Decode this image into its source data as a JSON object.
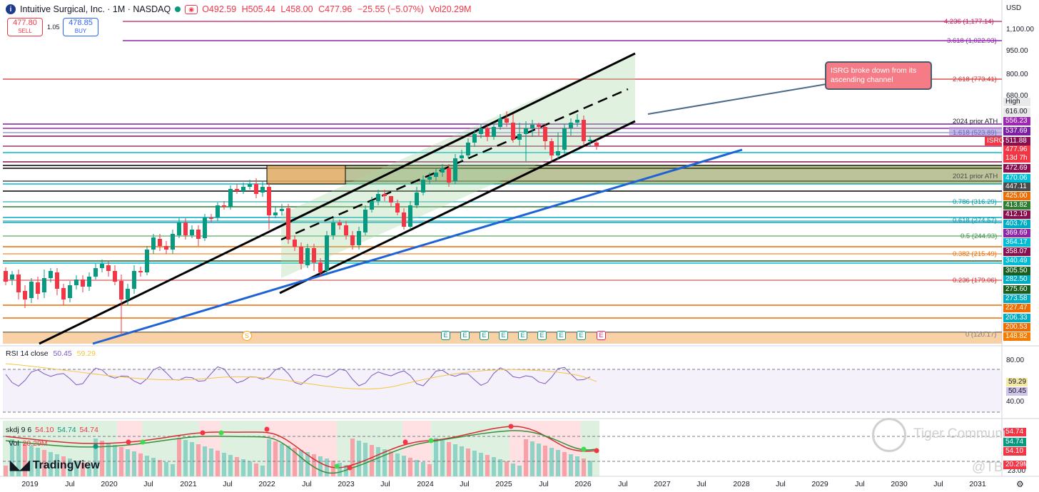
{
  "header": {
    "logo_letter": "i",
    "title": "Intuitive Surgical, Inc. · 1M · NASDAQ",
    "open": "O492.59",
    "high": "H505.44",
    "low": "L458.00",
    "close": "C477.96",
    "change": "−25.55 (−5.07%)",
    "volume": "Vol20.29M"
  },
  "trade": {
    "sell_price": "477.80",
    "sell_label": "SELL",
    "spread": "1.05",
    "buy_price": "478.85",
    "buy_label": "BUY"
  },
  "currency": "USD",
  "price_axis": [
    "1,100.00",
    "950.00",
    "800.00",
    "680.00",
    "40.00",
    "80.00"
  ],
  "price_labels": [
    {
      "text": "High",
      "bg": "#e9e9e9",
      "fg": "#131722"
    },
    {
      "text": "616.00",
      "bg": "#e9e9e9",
      "fg": "#131722"
    },
    {
      "text": "556.23",
      "bg": "#9c27b0",
      "fg": "#ffffff"
    },
    {
      "text": "537.69",
      "bg": "#7b1fa2",
      "fg": "#ffffff"
    },
    {
      "text": "511.88",
      "bg": "#880e4f",
      "fg": "#ffffff"
    },
    {
      "text": "ISRG",
      "bg": "#f23645",
      "fg": "#ffffff"
    },
    {
      "text": "477.96",
      "bg": "#f23645",
      "fg": "#ffffff"
    },
    {
      "text": "13d 7h",
      "bg": "#f23645",
      "fg": "#ffffff"
    },
    {
      "text": "472.69",
      "bg": "#880e4f",
      "fg": "#ffffff"
    },
    {
      "text": "470.06",
      "bg": "#00bcd4",
      "fg": "#ffffff"
    },
    {
      "text": "447.11",
      "bg": "#4a4a4a",
      "fg": "#ffffff"
    },
    {
      "text": "425.00",
      "bg": "#ef6c00",
      "fg": "#ffffff"
    },
    {
      "text": "413.82",
      "bg": "#2e7d32",
      "fg": "#ffffff"
    },
    {
      "text": "412.19",
      "bg": "#880e4f",
      "fg": "#ffffff"
    },
    {
      "text": "403.76",
      "bg": "#00acc1",
      "fg": "#ffffff"
    },
    {
      "text": "369.69",
      "bg": "#8e24aa",
      "fg": "#ffffff"
    },
    {
      "text": "364.17",
      "bg": "#00bcd4",
      "fg": "#ffffff"
    },
    {
      "text": "358.07",
      "bg": "#880e4f",
      "fg": "#ffffff"
    },
    {
      "text": "340.49",
      "bg": "#00bcd4",
      "fg": "#ffffff"
    },
    {
      "text": "305.50",
      "bg": "#1b5e20",
      "fg": "#ffffff"
    },
    {
      "text": "282.50",
      "bg": "#00acc1",
      "fg": "#ffffff"
    },
    {
      "text": "275.60",
      "bg": "#1b5e20",
      "fg": "#ffffff"
    },
    {
      "text": "273.58",
      "bg": "#00acc1",
      "fg": "#ffffff"
    },
    {
      "text": "227.47",
      "bg": "#ef6c00",
      "fg": "#ffffff"
    },
    {
      "text": "206.33",
      "bg": "#00acc1",
      "fg": "#ffffff"
    },
    {
      "text": "200.53",
      "bg": "#ef6c00",
      "fg": "#ffffff"
    },
    {
      "text": "148.82",
      "bg": "#f57c00",
      "fg": "#ffffff"
    }
  ],
  "fib_levels": [
    {
      "label": "4.236 (1,177.14)",
      "color": "#c2185b"
    },
    {
      "label": "3.618 (1,022.93)",
      "color": "#8e24aa"
    },
    {
      "label": "2.618 (773.41)",
      "color": "#d32f2f"
    },
    {
      "label": "1.618 (523.89)",
      "color": "#5c6bc0"
    },
    {
      "label": "0.786 (316.29)",
      "color": "#0097a7"
    },
    {
      "label": "0.618 (274.57)",
      "color": "#0097a7"
    },
    {
      "label": "0.5 (244.93)",
      "color": "#388e3c"
    },
    {
      "label": "0.382 (215.49)",
      "color": "#ef6c00"
    },
    {
      "label": "0.236 (179.06)",
      "color": "#d32f2f"
    },
    {
      "label": "0 (120.17)",
      "color": "#787b86"
    }
  ],
  "annotations": {
    "ath_2024": "2024 prior ATH",
    "ath_2021": "2021 prior ATH",
    "callout": "ISRG broke down from its ascending channel"
  },
  "rsi": {
    "label": "RSI",
    "params": "14 close",
    "value": "50.45",
    "ma_value": "59.29",
    "axis_top": "80.00",
    "axis_bottom": "40.00"
  },
  "skdj": {
    "label": "skdj",
    "params": "9 6",
    "k": "54.10",
    "d": "54.74",
    "j": "54.74"
  },
  "vol": {
    "label": "Vol",
    "value": "20.29M",
    "axis_bottom": "23.00"
  },
  "lower_labels": [
    {
      "text": "54.74",
      "bg": "#f23645"
    },
    {
      "text": "54.74",
      "bg": "#089981"
    },
    {
      "text": "54.10",
      "bg": "#f23645"
    },
    {
      "text": "20.29M",
      "bg": "#f23645"
    }
  ],
  "x_axis": [
    "2019",
    "Jul",
    "2020",
    "Jul",
    "2021",
    "Jul",
    "2022",
    "Jul",
    "2023",
    "Jul",
    "2024",
    "Jul",
    "2025",
    "Jul",
    "2026",
    "Jul",
    "2027",
    "Jul",
    "2028",
    "Jul",
    "2029",
    "Jul",
    "2030",
    "Jul",
    "2031"
  ],
  "earnings_badge": "E",
  "split_badge": "S",
  "brand": "TradingView",
  "watermark": "Tiger Community",
  "watermark_sub": "@TB",
  "colors": {
    "up": "#089981",
    "down": "#f23645",
    "channel": "#000000",
    "trend": "#1e63d6"
  }
}
